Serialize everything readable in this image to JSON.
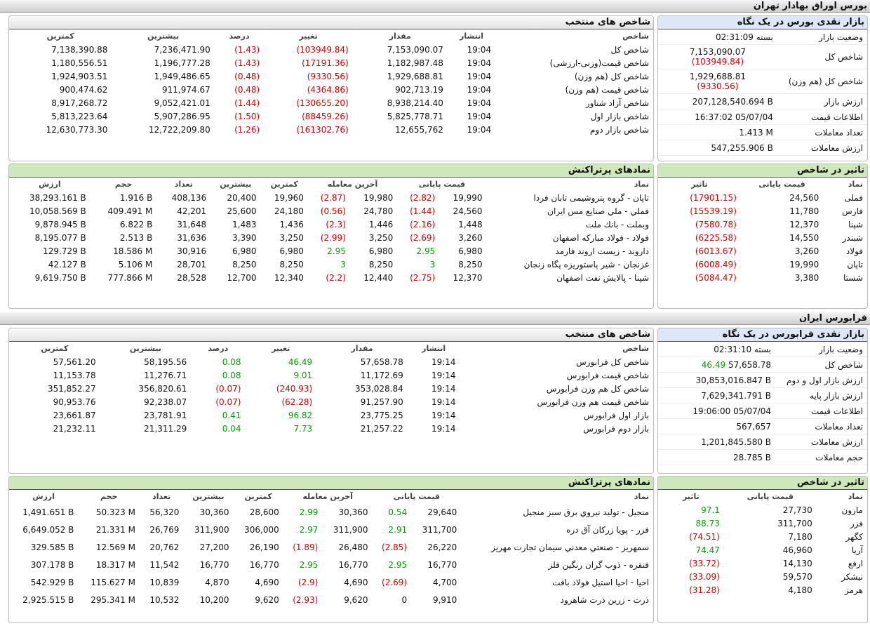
{
  "sections": [
    {
      "title": "بورس اوراق بهادار تهران",
      "overview": {
        "title": "بازار نقدی بورس در یک نگاه",
        "rows": [
          {
            "label": "وضعیت بازار",
            "value": "بسته 02:31:09"
          },
          {
            "label": "شاخص کل",
            "value": "7,153,090.07",
            "change": "(103949.84)"
          },
          {
            "label": "شاخص کل (هم وزن)",
            "value": "1,929,688.81",
            "change": "(9330.56)"
          },
          {
            "label": "ارزش بازار",
            "value": "207,128,540.694 B"
          },
          {
            "label": "اطلاعات قیمت",
            "value": "16:37:02 05/07/04"
          },
          {
            "label": "تعداد معاملات",
            "value": "1.413 M"
          },
          {
            "label": "ارزش معاملات",
            "value": "547,255.906 B"
          }
        ]
      },
      "indices": {
        "title": "شاخص های منتخب",
        "headers": [
          "شاخص",
          "انتشار",
          "مقدار",
          "تغییر",
          "درصد",
          "بیشترین",
          "کمترین"
        ],
        "rows": [
          [
            "شاخص کل",
            "19:04",
            "7,153,090.07",
            "(103949.84)",
            "(1.43)",
            "7,236,471.90",
            "7,138,390.88"
          ],
          [
            "شاخص قیمت(وزنی-ارزشی)",
            "19:04",
            "1,182,987.48",
            "(17191.36)",
            "(1.43)",
            "1,196,777.28",
            "1,180,556.51"
          ],
          [
            "شاخص کل (هم وزن)",
            "19:04",
            "1,929,688.81",
            "(9330.56)",
            "(0.48)",
            "1,949,486.65",
            "1,924,903.51"
          ],
          [
            "شاخص قیمت (هم وزن)",
            "19:04",
            "902,713.19",
            "(4364.86)",
            "(0.48)",
            "911,974.67",
            "900,474.62"
          ],
          [
            "شاخص آزاد شناور",
            "19:04",
            "8,938,214.40",
            "(130655.20)",
            "(1.44)",
            "9,052,421.01",
            "8,917,268.72"
          ],
          [
            "شاخص بازار اول",
            "19:04",
            "5,825,778.71",
            "(88459.26)",
            "(1.50)",
            "5,907,286.95",
            "5,813,223.64"
          ],
          [
            "شاخص بازار دوم",
            "19:04",
            "12,655,762",
            "(161302.76)",
            "(1.26)",
            "12,722,209.80",
            "12,630,773.30"
          ]
        ]
      },
      "impact": {
        "title": "تاثیر در شاخص",
        "headers": [
          "نماد",
          "قیمت پایانی",
          "تاثیر"
        ],
        "rows": [
          [
            "فملی",
            "24,560",
            "(17901.15)"
          ],
          [
            "فارس",
            "11,780",
            "(15539.19)"
          ],
          [
            "شپنا",
            "12,370",
            "(7580.78)"
          ],
          [
            "شبندر",
            "14,550",
            "(6225.58)"
          ],
          [
            "فولاد",
            "3,260",
            "(6013.67)"
          ],
          [
            "تاپان",
            "19,990",
            "(6008.49)"
          ],
          [
            "شستا",
            "3,380",
            "(5084.47)"
          ]
        ]
      },
      "active": {
        "title": "نمادهای پرتراکنش",
        "headers": [
          "نماد",
          "قیمت پایانی",
          "آخرین معامله",
          "کمترین",
          "بیشترین",
          "تعداد",
          "حجم",
          "ارزش"
        ],
        "rows": [
          [
            "تاپان - گروه پتروشیمی تابان فردا",
            "19,990",
            "(2.82)",
            "19,980",
            "(2.87)",
            "19,960",
            "20,400",
            "408,136",
            "1.916 B",
            "38,293.161 B"
          ],
          [
            "فملي - ملي صنايع مس ايران",
            "24,560",
            "(1.44)",
            "24,780",
            "(0.56)",
            "24,180",
            "25,600",
            "42,201",
            "409.491 M",
            "10,058.569 B"
          ],
          [
            "وبملت - بانك ملت",
            "1,448",
            "(2.16)",
            "1,446",
            "(2.3)",
            "1,436",
            "1,483",
            "31,648",
            "6.822 B",
            "9,878.945 B"
          ],
          [
            "فولاد - فولاد مباركه اصفهان",
            "3,260",
            "(2.69)",
            "3,250",
            "(2.99)",
            "3,250",
            "3,390",
            "31,636",
            "2.513 B",
            "8,195.077 B"
          ],
          [
            "داروند - زيست اروند فارمد",
            "6,980",
            "2.95",
            "6,980",
            "2.95",
            "6,980",
            "6,980",
            "30,916",
            "18.586 M",
            "129.729 B"
          ],
          [
            "غزنجان - شير پاستوريزه پگاه زنجان",
            "8,250",
            "3",
            "8,250",
            "3",
            "8,250",
            "8,250",
            "28,701",
            "5.106 M",
            "42.127 B"
          ],
          [
            "شپنا - پالايش نفت اصفهان",
            "12,370",
            "(2.75)",
            "12,440",
            "(2.2)",
            "12,340",
            "12,700",
            "28,528",
            "777.866 M",
            "9,619.750 B"
          ]
        ]
      }
    },
    {
      "title": "فرابورس ایران",
      "overview": {
        "title": "بازار نقدی فرابورس در یک نگاه",
        "rows": [
          {
            "label": "وضعیت بازار",
            "value": "بسته 02:31:10"
          },
          {
            "label": "شاخص کل",
            "value": "57,658.78",
            "change": "46.49"
          },
          {
            "label": "ارزش بازار اول و دوم",
            "value": "30,853,016.847 B"
          },
          {
            "label": "ارزش بازار پایه",
            "value": "7,629,341.791 B"
          },
          {
            "label": "اطلاعات قیمت",
            "value": "19:06:00 05/07/04"
          },
          {
            "label": "تعداد معاملات",
            "value": "567,657"
          },
          {
            "label": "ارزش معاملات",
            "value": "1,201,845.580 B"
          },
          {
            "label": "حجم معاملات",
            "value": "28.785 B"
          }
        ]
      },
      "indices": {
        "title": "شاخص های منتخب",
        "headers": [
          "شاخص",
          "انتشار",
          "مقدار",
          "تغییر",
          "درصد",
          "بیشترین",
          "کمترین"
        ],
        "rows": [
          [
            "شاخص کل فرابورس",
            "19:14",
            "57,658.78",
            "46.49",
            "0.08",
            "58,195.56",
            "57,561.20"
          ],
          [
            "شاخص قیمت فرابورس",
            "19:14",
            "11,172.69",
            "9.01",
            "0.08",
            "11,276.71",
            "11,153.78"
          ],
          [
            "شاخص کل هم وزن فرابورس",
            "19:14",
            "353,028.84",
            "(240.93)",
            "(0.07)",
            "356,820.61",
            "351,852.27"
          ],
          [
            "شاخص قیمت هم وزن فرابورس",
            "19:14",
            "91,257.90",
            "(62.28)",
            "(0.07)",
            "92,238.07",
            "90,953.76"
          ],
          [
            "بازار اول فرابورس",
            "19:14",
            "23,775.25",
            "96.82",
            "0.41",
            "23,781.91",
            "23,661.87"
          ],
          [
            "بازار دوم فرابورس",
            "19:14",
            "21,257.22",
            "7.73",
            "0.04",
            "21,311.29",
            "21,232.11"
          ]
        ]
      },
      "impact": {
        "title": "تاثیر در شاخص",
        "headers": [
          "نماد",
          "قیمت پایانی",
          "تاثیر"
        ],
        "rows": [
          [
            "مارون",
            "27,730",
            "97.1"
          ],
          [
            "فزر",
            "311,700",
            "88.73"
          ],
          [
            "کگهر",
            "7,180",
            "(74.51)"
          ],
          [
            "آریا",
            "46,960",
            "74.47"
          ],
          [
            "ارفع",
            "14,130",
            "(33.72)"
          ],
          [
            "نیشکر",
            "59,570",
            "(33.09)"
          ],
          [
            "هرمز",
            "4,180",
            "(31.28)"
          ]
        ]
      },
      "active": {
        "title": "نمادهای پرتراکنش",
        "headers": [
          "نماد",
          "قیمت پایانی",
          "آخرین معامله",
          "کمترین",
          "بیشترین",
          "تعداد",
          "حجم",
          "ارزش"
        ],
        "rows": [
          [
            "منجیل - تولید نیروي برق سبز منجیل",
            "29,640",
            "0.54",
            "30,360",
            "2.99",
            "28,600",
            "30,360",
            "56,320",
            "50.323 M",
            "1,491.651 B"
          ],
          [
            "فزر - پویا زرکان آق دره",
            "311,700",
            "2.91",
            "311,900",
            "2.97",
            "306,000",
            "311,900",
            "26,769",
            "21.331 M",
            "6,649.052 B"
          ],
          [
            "سمهریز - صنعتي معدني سیمان تجارت مهریز",
            "26,220",
            "(2.85)",
            "26,480",
            "(1.89)",
            "26,190",
            "27,200",
            "20,762",
            "12.569 M",
            "329.585 B"
          ],
          [
            "فنقره - ذوب گران رنگین فلز",
            "16,770",
            "2.95",
            "16,770",
            "2.95",
            "16,770",
            "16,770",
            "11,542",
            "18.317 M",
            "307.178 B"
          ],
          [
            "احیا - احیا استیل فولاد بافت",
            "4,700",
            "(2.69)",
            "4,690",
            "(2.9)",
            "4,690",
            "4,870",
            "10,839",
            "115.627 M",
            "542.929 B"
          ],
          [
            "ذرت - زرین ذرت شاهرود",
            "9,910",
            "0",
            "9,620",
            "(2.93)",
            "9,620",
            "10,200",
            "10,532",
            "295.341 M",
            "2,925.515 B"
          ]
        ]
      }
    }
  ]
}
